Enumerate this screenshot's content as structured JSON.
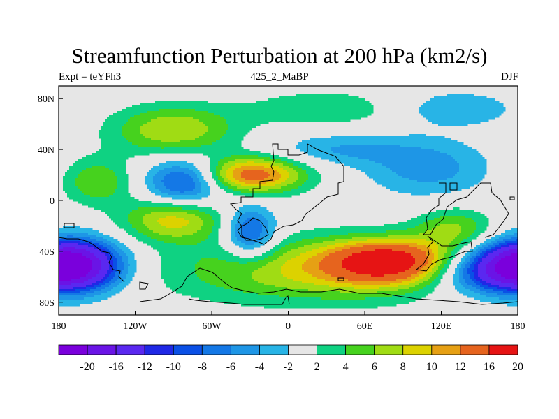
{
  "chart_data": {
    "type": "contour-map",
    "title": "Streamfunction Perturbation at 200 hPa (km2/s)",
    "left_label": "Expt = teYFh3",
    "center_label": "425_2_MaBP",
    "right_label": "DJF",
    "x_ticks": [
      "180",
      "120W",
      "60W",
      "0",
      "60E",
      "120E",
      "180"
    ],
    "y_ticks": [
      "80N",
      "40N",
      "0",
      "40S",
      "80S"
    ],
    "xlim": [
      -180,
      180
    ],
    "ylim": [
      -90,
      90
    ],
    "colorbar": {
      "labels": [
        "-20",
        "-16",
        "-12",
        "-10",
        "-8",
        "-6",
        "-4",
        "-2",
        "2",
        "4",
        "6",
        "8",
        "10",
        "12",
        "16",
        "20"
      ],
      "colors": [
        "#7a00dc",
        "#6a14e6",
        "#5a28f0",
        "#1f28e6",
        "#0a50e6",
        "#1478e6",
        "#1e96e6",
        "#28b4e6",
        "#e6e6e6",
        "#0fd282",
        "#46d21e",
        "#a0dc14",
        "#dcd200",
        "#e6a014",
        "#e6641e",
        "#e61414"
      ]
    },
    "anomalies": [
      {
        "lon": -30,
        "lat": 20,
        "value": 14,
        "sx": 30,
        "sy": 10
      },
      {
        "lon": 80,
        "lat": -48,
        "value": 16,
        "sx": 35,
        "sy": 12
      },
      {
        "lon": 20,
        "lat": -55,
        "value": 8,
        "sx": 80,
        "sy": 18
      },
      {
        "lon": -80,
        "lat": 15,
        "value": -11,
        "sx": 22,
        "sy": 13
      },
      {
        "lon": -30,
        "lat": -25,
        "value": -10,
        "sx": 14,
        "sy": 14
      },
      {
        "lon": -170,
        "lat": -50,
        "value": -20,
        "sx": 26,
        "sy": 14
      },
      {
        "lon": 160,
        "lat": -55,
        "value": -12,
        "sx": 35,
        "sy": 13
      },
      {
        "lon": -90,
        "lat": 55,
        "value": 8,
        "sx": 35,
        "sy": 14
      },
      {
        "lon": -90,
        "lat": -15,
        "value": 9,
        "sx": 28,
        "sy": 12
      },
      {
        "lon": 30,
        "lat": 72,
        "value": 4,
        "sx": 45,
        "sy": 10
      },
      {
        "lon": -150,
        "lat": 15,
        "value": 6,
        "sx": 20,
        "sy": 13
      },
      {
        "lon": 130,
        "lat": 72,
        "value": -4,
        "sx": 35,
        "sy": 10
      },
      {
        "lon": 110,
        "lat": 25,
        "value": -5,
        "sx": 35,
        "sy": 16
      },
      {
        "lon": 40,
        "lat": 40,
        "value": -4,
        "sx": 40,
        "sy": 9
      },
      {
        "lon": 130,
        "lat": -22,
        "value": 6,
        "sx": 22,
        "sy": 12
      }
    ]
  }
}
